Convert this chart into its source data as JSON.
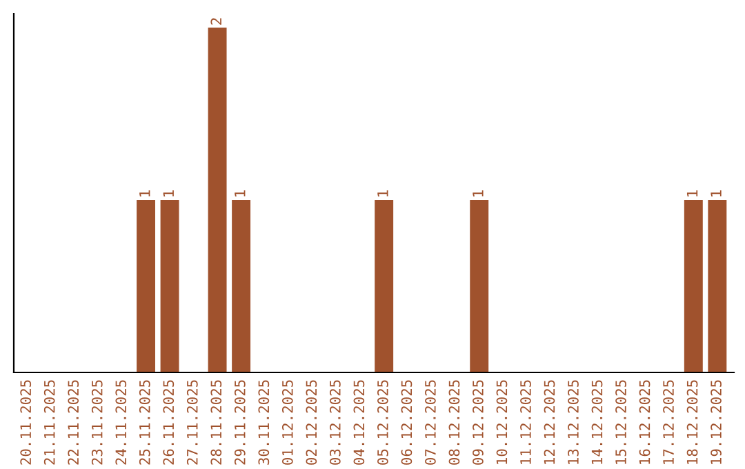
{
  "chart_data": {
    "type": "bar",
    "categories": [
      "20.11.2025",
      "21.11.2025",
      "22.11.2025",
      "23.11.2025",
      "24.11.2025",
      "25.11.2025",
      "26.11.2025",
      "27.11.2025",
      "28.11.2025",
      "29.11.2025",
      "30.11.2025",
      "01.12.2025",
      "02.12.2025",
      "03.12.2025",
      "04.12.2025",
      "05.12.2025",
      "06.12.2025",
      "07.12.2025",
      "08.12.2025",
      "09.12.2025",
      "10.12.2025",
      "11.12.2025",
      "12.12.2025",
      "13.12.2025",
      "14.12.2025",
      "15.12.2025",
      "16.12.2025",
      "17.12.2025",
      "18.12.2025",
      "19.12.2025"
    ],
    "values": [
      0,
      0,
      0,
      0,
      0,
      1,
      1,
      0,
      2,
      1,
      0,
      0,
      0,
      0,
      0,
      1,
      0,
      0,
      0,
      1,
      0,
      0,
      0,
      0,
      0,
      0,
      0,
      0,
      1,
      1
    ],
    "value_labels": [
      null,
      null,
      null,
      null,
      null,
      "1",
      "1",
      null,
      "2",
      "1",
      null,
      null,
      null,
      null,
      null,
      "1",
      null,
      null,
      null,
      "1",
      null,
      null,
      null,
      null,
      null,
      null,
      null,
      null,
      "1",
      "1"
    ],
    "color": "#a0522d",
    "ylim": [
      0,
      2.08
    ],
    "tick_labels": "x",
    "grid": false,
    "legend": false
  }
}
